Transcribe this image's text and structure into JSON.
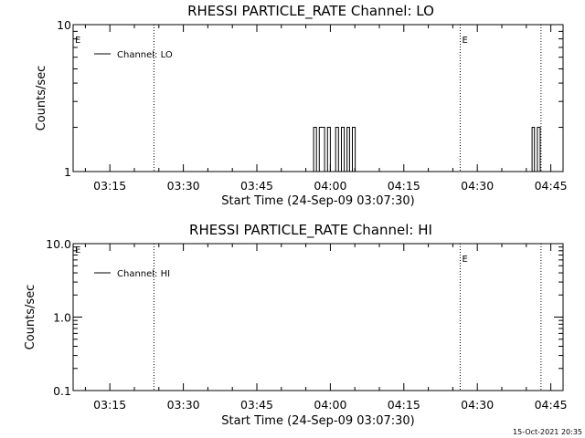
{
  "footer_timestamp": "15-Oct-2021 20:35",
  "chart_data": [
    {
      "type": "line",
      "title": "RHESSI PARTICLE_RATE Channel: LO",
      "xlabel": "Start Time (24-Sep-09 03:07:30)",
      "ylabel": "Counts/sec",
      "yscale": "log",
      "ylim": [
        1,
        10
      ],
      "y_ticks": [
        "1",
        "10"
      ],
      "xlim": [
        "03:07:30",
        "04:47:30"
      ],
      "x_ticks": [
        "03:15",
        "03:30",
        "03:45",
        "04:00",
        "04:15",
        "04:30",
        "04:45"
      ],
      "legend": {
        "placement": "top-left",
        "label": "Channel: LO"
      },
      "series": [
        {
          "name": "Channel: LO",
          "x": [
            "03:56:00",
            "03:56:35",
            "03:57:10",
            "03:57:45",
            "03:58:15",
            "03:58:50",
            "03:59:25",
            "04:00:00",
            "04:00:35",
            "04:01:05",
            "04:01:40",
            "04:02:15",
            "04:02:50",
            "04:03:25",
            "04:03:55",
            "04:04:30",
            "04:05:05",
            "04:40:35",
            "04:41:10",
            "04:41:40",
            "04:42:15",
            "04:42:50"
          ],
          "y": [
            1,
            2,
            1,
            2,
            2,
            1,
            2,
            1,
            1,
            2,
            1,
            2,
            1,
            2,
            1,
            2,
            1,
            1,
            2,
            1,
            2,
            1
          ]
        }
      ],
      "markers": [
        {
          "time": "03:24:00",
          "label": ""
        },
        {
          "time": "04:26:30",
          "label": "E"
        },
        {
          "time": "04:43:00",
          "label": ""
        }
      ],
      "edge_label": "E"
    },
    {
      "type": "line",
      "title": "RHESSI PARTICLE_RATE Channel: HI",
      "xlabel": "Start Time (24-Sep-09 03:07:30)",
      "ylabel": "Counts/sec",
      "yscale": "log",
      "ylim": [
        0.1,
        10
      ],
      "y_ticks": [
        "0.1",
        "1.0",
        "10.0"
      ],
      "xlim": [
        "03:07:30",
        "04:47:30"
      ],
      "x_ticks": [
        "03:15",
        "03:30",
        "03:45",
        "04:00",
        "04:15",
        "04:30",
        "04:45"
      ],
      "legend": {
        "placement": "top-left",
        "label": "Channel: HI"
      },
      "series": [
        {
          "name": "Channel: HI",
          "x": [],
          "y": []
        }
      ],
      "markers": [
        {
          "time": "03:24:00",
          "label": ""
        },
        {
          "time": "04:26:30",
          "label": "E"
        },
        {
          "time": "04:43:00",
          "label": ""
        }
      ],
      "edge_label": "E"
    }
  ]
}
